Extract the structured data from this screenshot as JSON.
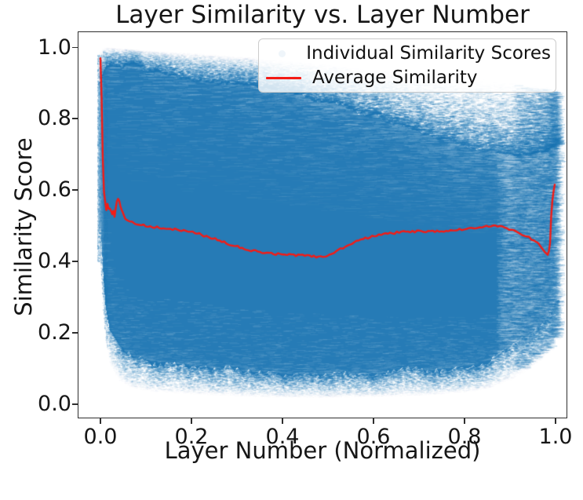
{
  "chart": {
    "title": "Layer Similarity vs. Layer Number",
    "x_axis": {
      "label": "Layer Number (Normalized)",
      "tick_values": [
        0.0,
        0.2,
        0.4,
        0.6,
        0.8,
        1.0
      ],
      "tick_labels": [
        "0.0",
        "0.2",
        "0.4",
        "0.6",
        "0.8",
        "1.0"
      ]
    },
    "y_axis": {
      "label": "Similarity Score",
      "tick_values": [
        0.0,
        0.2,
        0.4,
        0.6,
        0.8,
        1.0
      ],
      "tick_labels": [
        "0.0",
        "0.2",
        "0.4",
        "0.6",
        "0.8",
        "1.0"
      ]
    },
    "legend": {
      "position": "upper right",
      "items": [
        {
          "label": "Individual Similarity Scores",
          "marker": "scatter-point",
          "color": "#1f77b4",
          "marker_visible": false
        },
        {
          "label": "Average Similarity",
          "marker": "line",
          "color": "#f31b15"
        }
      ]
    }
  },
  "colors": {
    "scatter": "#1f77b4",
    "average_line": "#f31b15",
    "background": "#ffffff",
    "spine": "#2e2e2e",
    "legend_border": "#cccccc"
  },
  "chart_data": {
    "type": "scatter",
    "title": "Layer Similarity vs. Layer Number",
    "xlabel": "Layer Number (Normalized)",
    "ylabel": "Similarity Score",
    "xlim": [
      -0.05,
      1.026
    ],
    "ylim": [
      -0.04,
      1.045
    ],
    "grid": false,
    "legend_position": "upper right",
    "series": [
      {
        "name": "Individual Similarity Scores",
        "type": "scatter",
        "color": "#1f77b4",
        "alpha": "very low (dense translucent cloud)",
        "x_range": [
          0.0,
          1.0
        ],
        "y_range": [
          0.02,
          1.0
        ],
        "cloud_envelope": {
          "x": [
            0.0,
            0.005,
            0.01,
            0.02,
            0.04,
            0.07,
            0.12,
            0.2,
            0.3,
            0.4,
            0.5,
            0.6,
            0.7,
            0.8,
            0.85,
            0.9,
            0.94,
            0.97,
            0.99,
            1.0
          ],
          "top_solid": [
            0.9,
            0.935,
            0.945,
            0.95,
            0.95,
            0.945,
            0.93,
            0.915,
            0.9,
            0.875,
            0.845,
            0.81,
            0.77,
            0.73,
            0.715,
            0.7,
            0.7,
            0.71,
            0.72,
            0.72
          ],
          "top_feather": [
            0.98,
            0.99,
            0.99,
            0.99,
            0.988,
            0.985,
            0.98,
            0.975,
            0.965,
            0.955,
            0.945,
            0.93,
            0.92,
            0.91,
            0.905,
            0.9,
            0.89,
            0.885,
            0.88,
            0.875
          ],
          "bot_solid": [
            0.5,
            0.38,
            0.29,
            0.21,
            0.16,
            0.135,
            0.12,
            0.11,
            0.095,
            0.088,
            0.085,
            0.088,
            0.095,
            0.11,
            0.125,
            0.16,
            0.2,
            0.235,
            0.27,
            0.3
          ],
          "bot_feather": [
            0.4,
            0.27,
            0.19,
            0.12,
            0.075,
            0.055,
            0.045,
            0.04,
            0.033,
            0.03,
            0.03,
            0.032,
            0.035,
            0.045,
            0.055,
            0.08,
            0.11,
            0.14,
            0.16,
            0.19
          ]
        }
      },
      {
        "name": "Average Similarity",
        "type": "line",
        "color": "#f31b15",
        "points": [
          [
            0.0,
            0.97
          ],
          [
            0.002,
            0.9
          ],
          [
            0.004,
            0.76
          ],
          [
            0.006,
            0.64
          ],
          [
            0.008,
            0.59
          ],
          [
            0.01,
            0.572
          ],
          [
            0.013,
            0.545
          ],
          [
            0.016,
            0.568
          ],
          [
            0.019,
            0.54
          ],
          [
            0.022,
            0.552
          ],
          [
            0.025,
            0.53
          ],
          [
            0.028,
            0.548
          ],
          [
            0.031,
            0.528
          ],
          [
            0.034,
            0.552
          ],
          [
            0.037,
            0.572
          ],
          [
            0.04,
            0.576
          ],
          [
            0.044,
            0.556
          ],
          [
            0.048,
            0.54
          ],
          [
            0.053,
            0.524
          ],
          [
            0.06,
            0.516
          ],
          [
            0.07,
            0.51
          ],
          [
            0.08,
            0.506
          ],
          [
            0.09,
            0.503
          ],
          [
            0.1,
            0.5
          ],
          [
            0.12,
            0.497
          ],
          [
            0.14,
            0.494
          ],
          [
            0.16,
            0.49
          ],
          [
            0.18,
            0.487
          ],
          [
            0.2,
            0.483
          ],
          [
            0.22,
            0.476
          ],
          [
            0.24,
            0.468
          ],
          [
            0.26,
            0.459
          ],
          [
            0.28,
            0.45
          ],
          [
            0.3,
            0.442
          ],
          [
            0.32,
            0.435
          ],
          [
            0.34,
            0.429
          ],
          [
            0.36,
            0.425
          ],
          [
            0.38,
            0.422
          ],
          [
            0.4,
            0.42
          ],
          [
            0.42,
            0.418
          ],
          [
            0.44,
            0.417
          ],
          [
            0.46,
            0.415
          ],
          [
            0.48,
            0.413
          ],
          [
            0.495,
            0.412
          ],
          [
            0.51,
            0.422
          ],
          [
            0.53,
            0.436
          ],
          [
            0.55,
            0.449
          ],
          [
            0.57,
            0.46
          ],
          [
            0.59,
            0.468
          ],
          [
            0.61,
            0.474
          ],
          [
            0.63,
            0.478
          ],
          [
            0.65,
            0.481
          ],
          [
            0.67,
            0.483
          ],
          [
            0.69,
            0.484
          ],
          [
            0.71,
            0.485
          ],
          [
            0.73,
            0.485
          ],
          [
            0.75,
            0.486
          ],
          [
            0.77,
            0.487
          ],
          [
            0.79,
            0.489
          ],
          [
            0.81,
            0.492
          ],
          [
            0.83,
            0.496
          ],
          [
            0.85,
            0.499
          ],
          [
            0.865,
            0.5
          ],
          [
            0.88,
            0.497
          ],
          [
            0.895,
            0.492
          ],
          [
            0.91,
            0.485
          ],
          [
            0.925,
            0.477
          ],
          [
            0.94,
            0.468
          ],
          [
            0.952,
            0.459
          ],
          [
            0.962,
            0.45
          ],
          [
            0.97,
            0.44
          ],
          [
            0.976,
            0.43
          ],
          [
            0.98,
            0.422
          ],
          [
            0.983,
            0.418
          ],
          [
            0.986,
            0.432
          ],
          [
            0.988,
            0.452
          ],
          [
            0.99,
            0.52
          ],
          [
            0.993,
            0.57
          ],
          [
            0.996,
            0.6
          ],
          [
            1.0,
            0.627
          ]
        ]
      }
    ]
  }
}
